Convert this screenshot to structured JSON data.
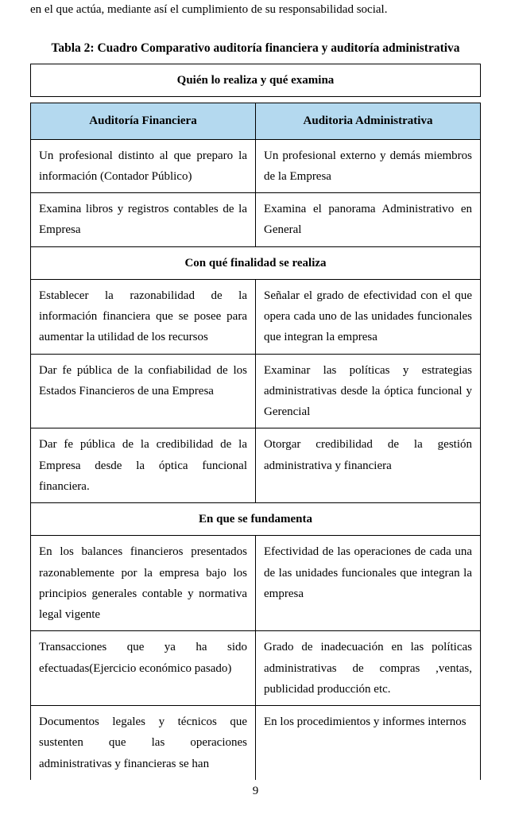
{
  "top_fragment": "en el que actúa,  mediante así el cumplimiento de su responsabilidad social.",
  "caption": "Tabla 2: Cuadro Comparativo auditoría financiera y auditoría administrativa",
  "colors": {
    "header_bg": "#b4d9ef",
    "border": "#000000",
    "text": "#000000",
    "page_bg": "#ffffff"
  },
  "typography": {
    "base_fontsize_pt": 12,
    "caption_fontsize_pt": 12,
    "line_height": 1.75,
    "font_family": "Times New Roman"
  },
  "sections": {
    "s1": {
      "title": "Quién lo realiza y qué examina",
      "col_left": "Auditoría Financiera",
      "col_right": "Auditoria Administrativa",
      "rows": {
        "r1": {
          "left": "Un profesional distinto al que preparo la información (Contador Público)",
          "right": "Un profesional externo y demás miembros de la Empresa"
        },
        "r2": {
          "left": "Examina libros y registros  contables  de la Empresa",
          "right": "Examina  el panorama Administrativo en General"
        }
      }
    },
    "s2": {
      "title": "Con qué finalidad se realiza",
      "rows": {
        "r1": {
          "left": "Establecer la razonabilidad de la información financiera  que se posee para aumentar la utilidad de los recursos",
          "right": "Señalar el grado de efectividad con el que opera cada uno de las unidades funcionales que integran la empresa"
        },
        "r2": {
          "left": "Dar fe pública de la confiabilidad de los Estados Financieros de una Empresa",
          "right": "Examinar las políticas  y estrategias administrativas desde la óptica funcional y Gerencial"
        },
        "r3": {
          "left": "Dar fe pública de la credibilidad de la Empresa desde la óptica funcional financiera.",
          "right": "Otorgar credibilidad de la gestión administrativa y financiera"
        }
      }
    },
    "s3": {
      "title": "En que se fundamenta",
      "rows": {
        "r1": {
          "left": "En los balances financieros presentados razonablemente por la empresa bajo los principios generales contable y normativa legal vigente",
          "right": "Efectividad de las operaciones de cada una de las unidades funcionales que integran la empresa"
        },
        "r2": {
          "left": "Transacciones que ya ha sido efectuadas(Ejercicio económico pasado)",
          "right": "Grado de inadecuación en las políticas administrativas de compras ,ventas, publicidad producción etc."
        },
        "r3": {
          "left": "Documentos legales y técnicos que sustenten que las operaciones administrativas y financieras se han",
          "right": "En los procedimientos y  informes internos"
        }
      }
    }
  },
  "page_number": "9"
}
